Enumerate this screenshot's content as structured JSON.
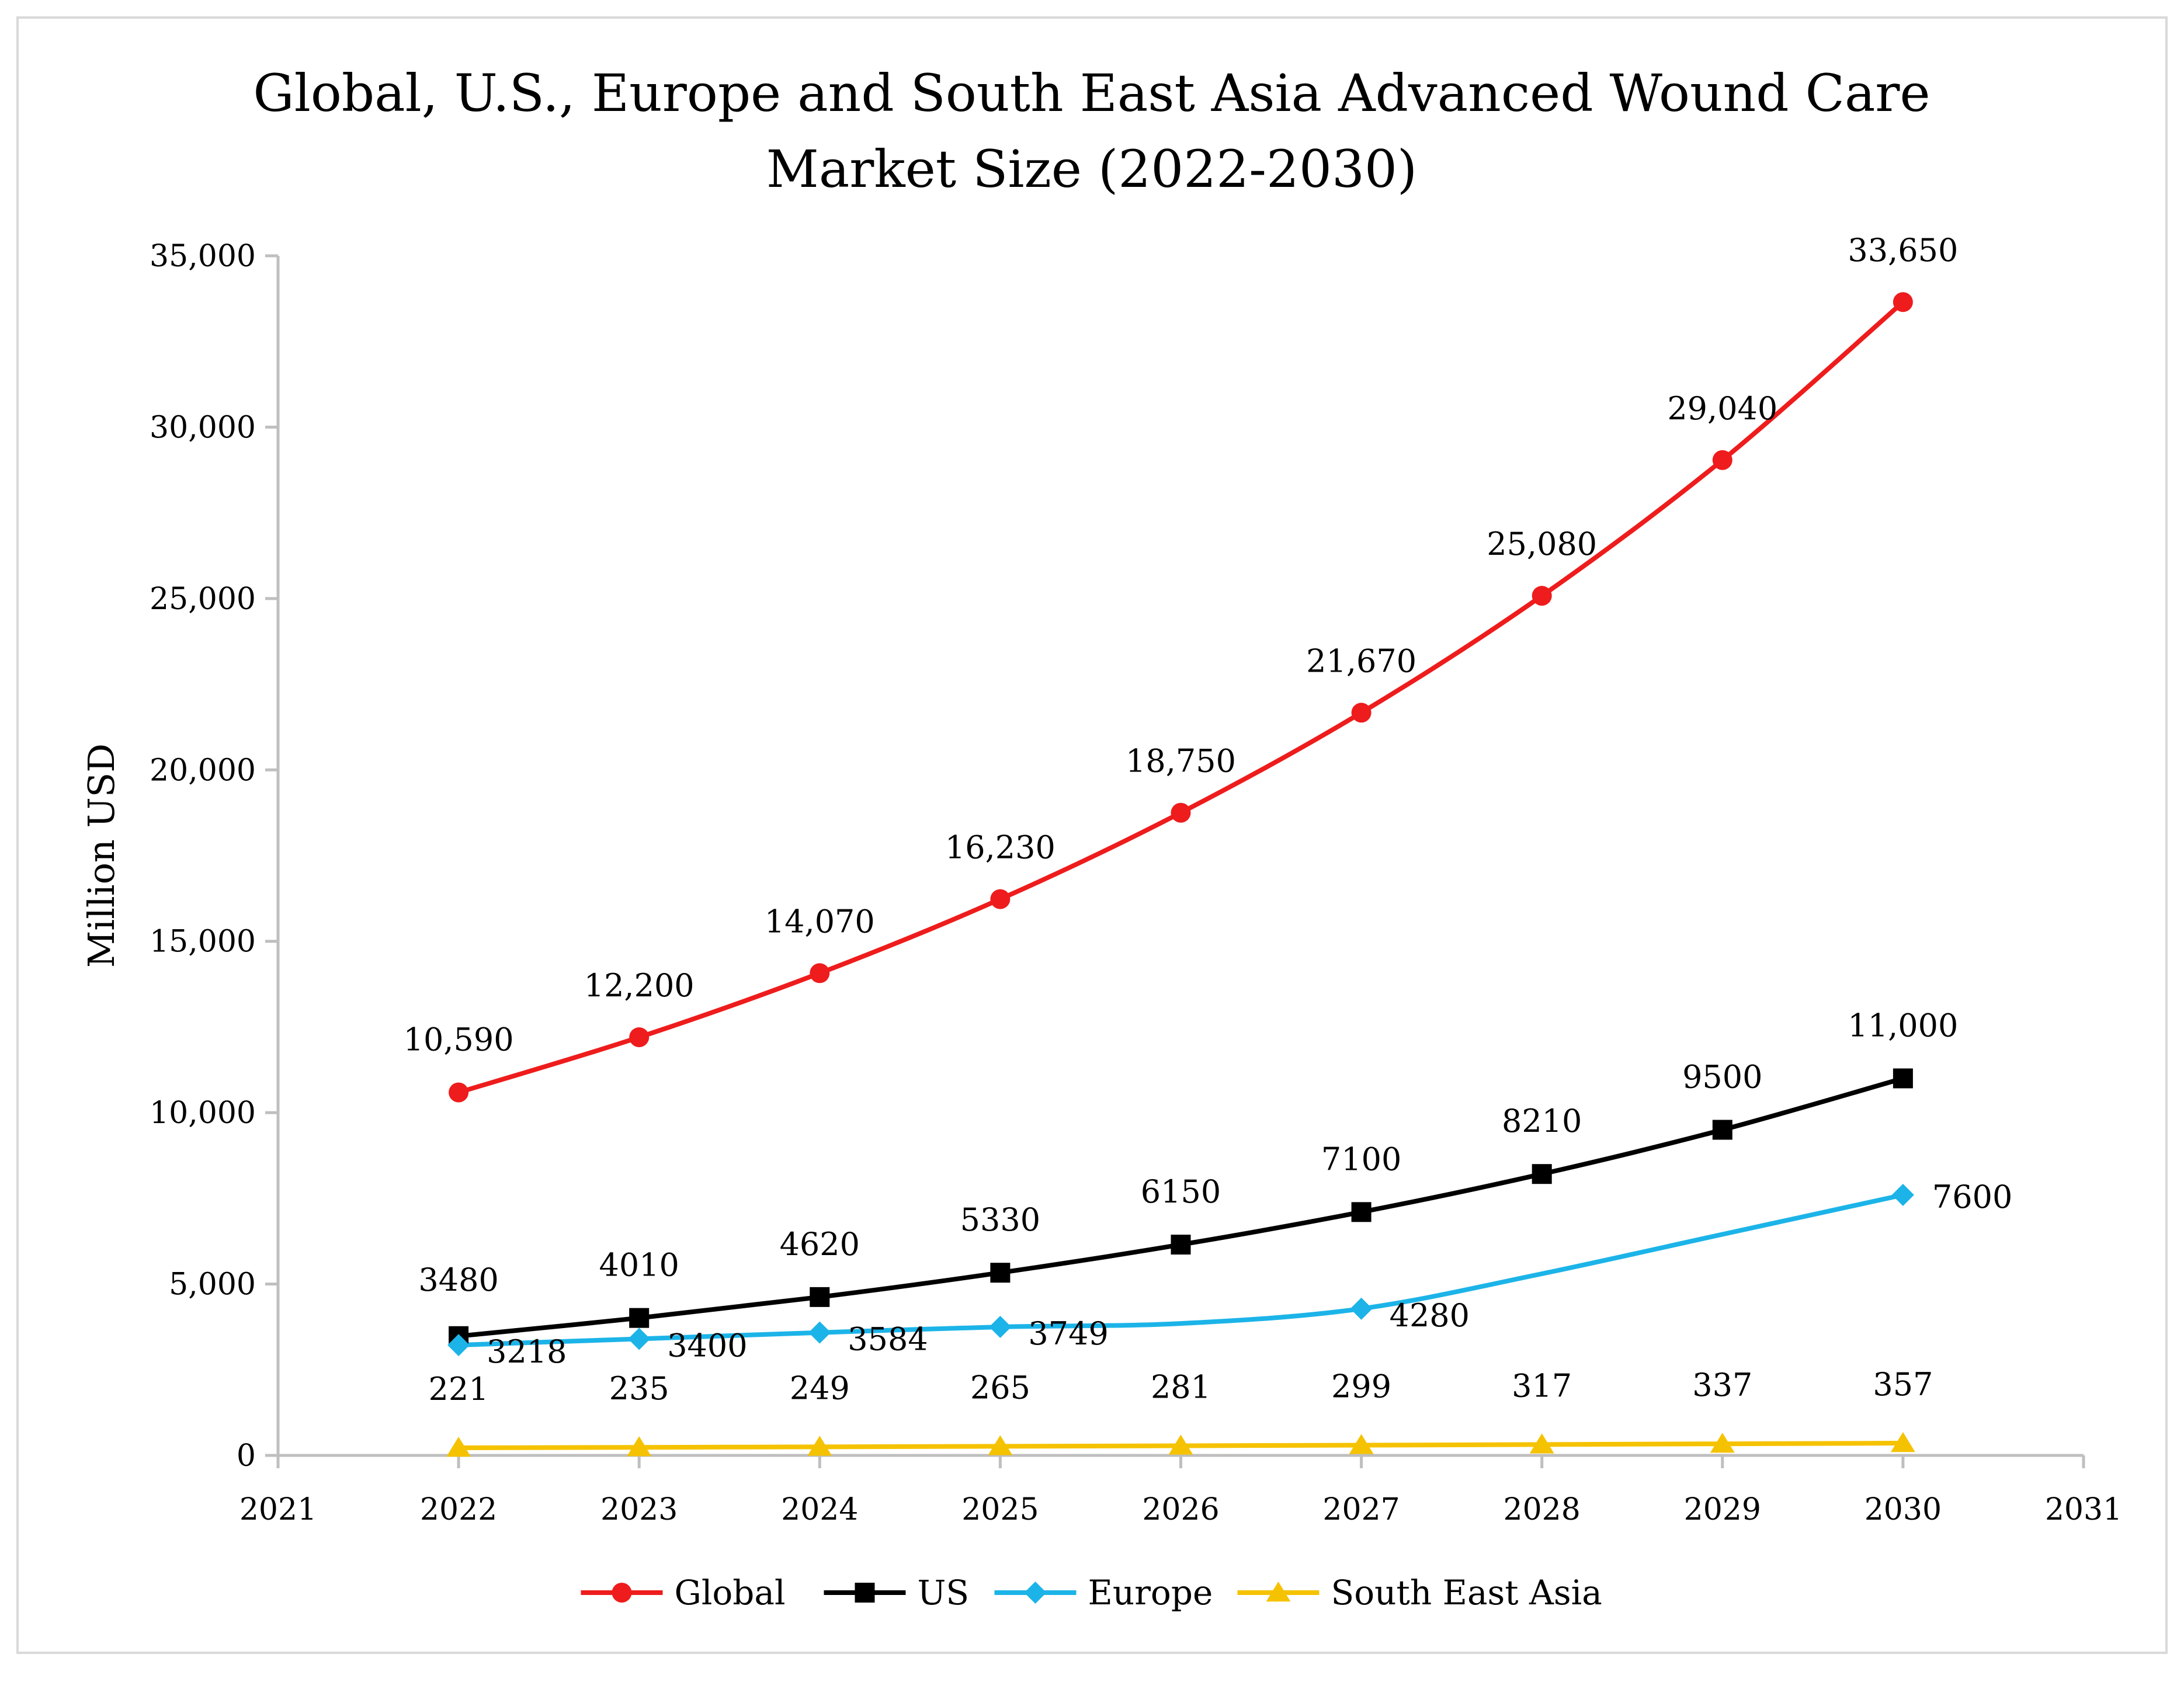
{
  "chart_data": {
    "type": "line",
    "title_lines": [
      "Global, U.S., Europe and South East Asia Advanced Wound Care",
      "Market Size (2022-2030)"
    ],
    "ylabel": "Million USD",
    "xlabel": "",
    "x_ticks": [
      "2021",
      "2022",
      "2023",
      "2024",
      "2025",
      "2026",
      "2027",
      "2028",
      "2029",
      "2030",
      "2031"
    ],
    "y_ticks": [
      "0",
      "5,000",
      "10,000",
      "15,000",
      "20,000",
      "25,000",
      "30,000",
      "35,000"
    ],
    "xlim": [
      2021,
      2031
    ],
    "ylim": [
      0,
      35000
    ],
    "grid": false,
    "legend_position": "bottom",
    "x": [
      2022,
      2023,
      2024,
      2025,
      2026,
      2027,
      2028,
      2029,
      2030
    ],
    "series": [
      {
        "name": "Global",
        "color": "#ee1c1c",
        "marker": "circle",
        "values": [
          10590,
          12200,
          14070,
          16230,
          18750,
          21670,
          25080,
          29040,
          33650
        ],
        "labels": [
          "10,590",
          "12,200",
          "14,070",
          "16,230",
          "18,750",
          "21,670",
          "25,080",
          "29,040",
          "33,650"
        ],
        "marker_on": [
          true,
          true,
          true,
          true,
          true,
          true,
          true,
          true,
          true
        ]
      },
      {
        "name": "US",
        "color": "#000000",
        "marker": "square",
        "values": [
          3480,
          4010,
          4620,
          5330,
          6150,
          7100,
          8210,
          9500,
          11000
        ],
        "labels": [
          "3480",
          "4010",
          "4620",
          "5330",
          "6150",
          "7100",
          "8210",
          "9500",
          "11,000"
        ],
        "marker_on": [
          true,
          true,
          true,
          true,
          true,
          true,
          true,
          true,
          true
        ]
      },
      {
        "name": "Europe",
        "color": "#1cb4e8",
        "marker": "diamond",
        "values": [
          3218,
          3400,
          3584,
          3749,
          3850,
          4280,
          5300,
          6450,
          7600
        ],
        "labels": [
          "3218",
          "3400",
          "3584",
          "3749",
          "",
          "4280",
          "",
          "",
          "7600"
        ],
        "marker_on": [
          true,
          true,
          true,
          true,
          false,
          true,
          false,
          false,
          true
        ]
      },
      {
        "name": "South East Asia",
        "color": "#f5c200",
        "marker": "triangle",
        "values": [
          221,
          235,
          249,
          265,
          281,
          299,
          317,
          337,
          357
        ],
        "labels": [
          "221",
          "235",
          "249",
          "265",
          "281",
          "299",
          "317",
          "337",
          "357"
        ],
        "marker_on": [
          true,
          true,
          true,
          true,
          true,
          true,
          true,
          true,
          true
        ]
      }
    ]
  }
}
